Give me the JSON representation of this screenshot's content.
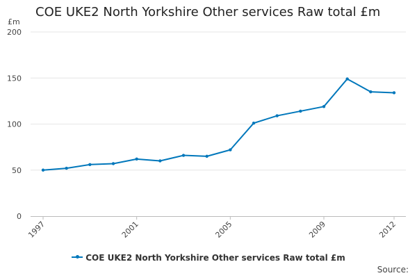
{
  "chart_data": {
    "type": "line",
    "title": "COE UKE2 North Yorkshire Other services Raw total £m",
    "ylabel": "£m",
    "xlabel": "",
    "x": [
      1997,
      1998,
      1999,
      2000,
      2001,
      2002,
      2003,
      2004,
      2005,
      2006,
      2007,
      2008,
      2009,
      2010,
      2011,
      2012
    ],
    "x_ticks": [
      "1997",
      "2001",
      "2005",
      "2009",
      "2012"
    ],
    "y_ticks": [
      "0",
      "50",
      "100",
      "150",
      "200"
    ],
    "ylim": [
      0,
      200
    ],
    "grid": true,
    "legend_position": "bottom",
    "series": [
      {
        "name": "COE UKE2 North Yorkshire Other services Raw total £m",
        "color": "#0077BB",
        "values": [
          50,
          52,
          56,
          57,
          62,
          60,
          66,
          65,
          72,
          101,
          109,
          114,
          119,
          149,
          135,
          134
        ]
      }
    ]
  },
  "footer": {
    "source_label": "Source:"
  }
}
